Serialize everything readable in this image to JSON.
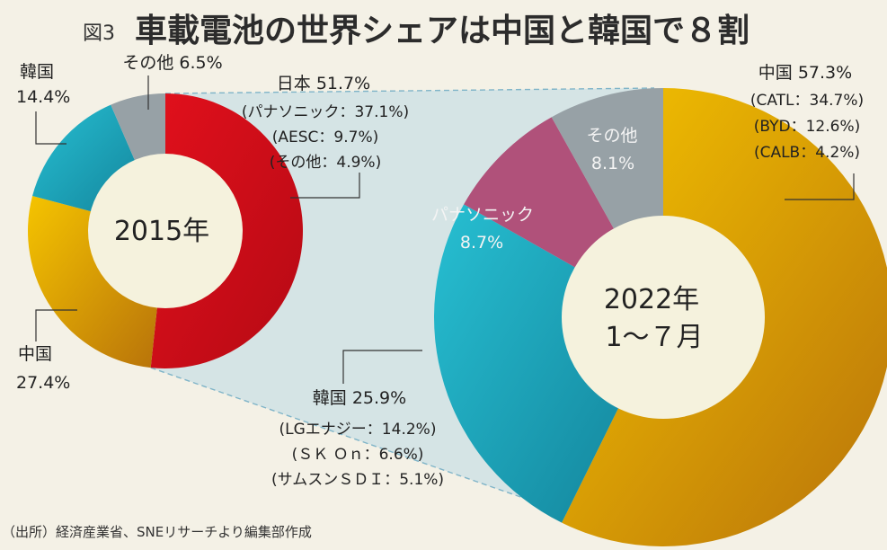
{
  "header": {
    "figure_label": "図3",
    "title": "車載電池の世界シェアは中国と韓国で８割"
  },
  "source": "（出所）経済産業省、SNEリサーチより編集部作成",
  "colors": {
    "background": "#f4f1e6",
    "japan": "#d10d1b",
    "china": "#e3a006",
    "korea": "#1aa7bd",
    "panasonic": "#b0517a",
    "other": "#97a1a6",
    "center": "#f5f2dd",
    "connector": "#bcd8e4"
  },
  "chart_data": [
    {
      "type": "pie",
      "center_label": "2015年",
      "series": [
        {
          "name": "日本",
          "value": 51.7,
          "label": "日本 51.7%",
          "details": [
            "(パナソニック：37.1%)",
            "(AESC：9.7%)",
            "(その他：4.9%)"
          ]
        },
        {
          "name": "中国",
          "value": 27.4,
          "label": "中国",
          "value_label": "27.4%"
        },
        {
          "name": "韓国",
          "value": 14.4,
          "label": "韓国",
          "value_label": "14.4%"
        },
        {
          "name": "その他",
          "value": 6.5,
          "label": "その他 6.5%"
        }
      ]
    },
    {
      "type": "pie",
      "center_label": [
        "2022年",
        "1〜７月"
      ],
      "series": [
        {
          "name": "中国",
          "value": 57.3,
          "label": "中国 57.3%",
          "details": [
            "(CATL：34.7%)",
            "(BYD：12.6%)",
            "(CALB：4.2%)"
          ]
        },
        {
          "name": "韓国",
          "value": 25.9,
          "label": "韓国 25.9%",
          "details": [
            "(LGエナジー：14.2%)",
            "(ＳＫ Ｏｎ：6.6%)",
            "(サムスンＳＤＩ：5.1%)"
          ]
        },
        {
          "name": "パナソニック",
          "value": 8.7,
          "label": "パナソニック",
          "value_label": "8.7%"
        },
        {
          "name": "その他",
          "value": 8.1,
          "label": "その他",
          "value_label": "8.1%"
        }
      ]
    }
  ]
}
